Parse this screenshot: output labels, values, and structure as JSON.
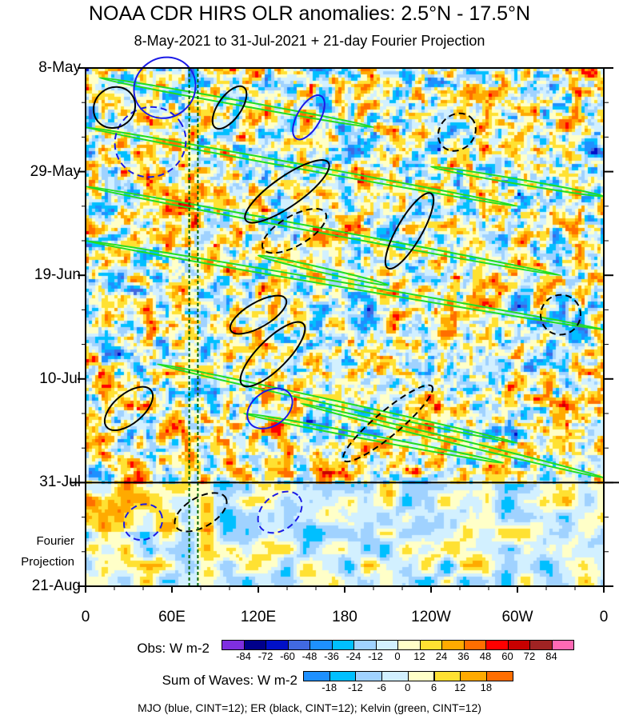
{
  "chart_data": {
    "type": "heatmap",
    "title": "NOAA CDR HIRS OLR anomalies: 2.5°N - 17.5°N",
    "subtitle": "8-May-2021 to 31-Jul-2021 + 21-day Fourier Projection",
    "x_ticks": [
      "0",
      "60E",
      "120E",
      "180",
      "120W",
      "60W",
      "0"
    ],
    "x_tick_lons": [
      0,
      60,
      120,
      180,
      240,
      300,
      360
    ],
    "y_ticks": [
      "8-May",
      "29-May",
      "19-Jun",
      "10-Jul",
      "31-Jul",
      "21-Aug"
    ],
    "y_tick_days": [
      0,
      21,
      42,
      63,
      84,
      105
    ],
    "obs_end_day": 84,
    "projection_label": [
      "Fourier",
      "Projection"
    ],
    "reference_lons": [
      72,
      78
    ],
    "obs_colorbar": {
      "label": "Obs: W m-2",
      "levels": [
        "-84",
        "-72",
        "-60",
        "-48",
        "-36",
        "-24",
        "-12",
        "0",
        "12",
        "24",
        "36",
        "48",
        "60",
        "72",
        "84"
      ],
      "colors": [
        "#7f2fe0",
        "#00008b",
        "#0010c8",
        "#4169e1",
        "#1e90ff",
        "#00bfff",
        "#a0d2ff",
        "#d2f0ff",
        "#ffffc8",
        "#ffe132",
        "#ffaa00",
        "#ff6e00",
        "#ff0000",
        "#c80000",
        "#a02323",
        "#ff69b4"
      ]
    },
    "waves_colorbar": {
      "label": "Sum of Waves: W m-2",
      "levels": [
        "-18",
        "-12",
        "-6",
        "0",
        "6",
        "12",
        "18"
      ],
      "colors": [
        "#1e90ff",
        "#00bfff",
        "#a0d2ff",
        "#d2f0ff",
        "#ffffc8",
        "#ffe132",
        "#ffaa00",
        "#ff6e00"
      ]
    },
    "footer": "MJO (blue, CINT=12); ER (black, CINT=12); Kelvin (green, CINT=12)",
    "contours": [
      {
        "wave": "MJO",
        "lon": 55,
        "day": 4,
        "rlon": 22,
        "rday": 6,
        "angle": -40,
        "dash": false
      },
      {
        "wave": "MJO",
        "lon": 45,
        "day": 15,
        "rlon": 25,
        "rday": 7,
        "angle": -35,
        "dash": true
      },
      {
        "wave": "MJO",
        "lon": 155,
        "day": 10,
        "rlon": 8,
        "rday": 5,
        "angle": -60,
        "dash": false
      },
      {
        "wave": "MJO",
        "lon": 128,
        "day": 69,
        "rlon": 12,
        "rday": 5,
        "angle": -35,
        "dash": false
      },
      {
        "wave": "MJO",
        "lon": 40,
        "day": 92,
        "rlon": 12,
        "rday": 4,
        "angle": -30,
        "dash": true
      },
      {
        "wave": "MJO",
        "lon": 135,
        "day": 90,
        "rlon": 12,
        "rday": 5,
        "angle": -40,
        "dash": true
      },
      {
        "wave": "ER",
        "lon": 100,
        "day": 8,
        "rlon": 8,
        "rday": 5,
        "angle": -55,
        "dash": false
      },
      {
        "wave": "ER",
        "lon": 140,
        "day": 25,
        "rlon": 35,
        "rday": 3,
        "angle": -35,
        "dash": false
      },
      {
        "wave": "ER",
        "lon": 145,
        "day": 33,
        "rlon": 25,
        "rday": 3,
        "angle": -30,
        "dash": true
      },
      {
        "wave": "ER",
        "lon": 225,
        "day": 33,
        "rlon": 30,
        "rday": 2.5,
        "angle": -60,
        "dash": false
      },
      {
        "wave": "ER",
        "lon": 258,
        "day": 13,
        "rlon": 14,
        "rday": 3.5,
        "angle": -45,
        "dash": true
      },
      {
        "wave": "ER",
        "lon": 120,
        "day": 50,
        "rlon": 22,
        "rday": 2.5,
        "angle": -30,
        "dash": false
      },
      {
        "wave": "ER",
        "lon": 130,
        "day": 58,
        "rlon": 30,
        "rday": 3,
        "angle": -45,
        "dash": false
      },
      {
        "wave": "ER",
        "lon": 210,
        "day": 72,
        "rlon": 40,
        "rday": 2.5,
        "angle": -40,
        "dash": true
      },
      {
        "wave": "ER",
        "lon": 330,
        "day": 50,
        "rlon": 14,
        "rday": 4,
        "angle": -45,
        "dash": true
      },
      {
        "wave": "ER",
        "lon": 30,
        "day": 69,
        "rlon": 20,
        "rday": 3,
        "angle": -40,
        "dash": false
      },
      {
        "wave": "ER",
        "lon": 20,
        "day": 8,
        "rlon": 15,
        "rday": 4,
        "angle": -40,
        "dash": false
      },
      {
        "wave": "ER",
        "lon": 80,
        "day": 90,
        "rlon": 20,
        "rday": 3,
        "angle": -30,
        "dash": true
      }
    ],
    "kelvin_bands": [
      {
        "lon0": 10,
        "day0": 2,
        "lon1": 200,
        "day1": 12
      },
      {
        "lon0": 0,
        "day0": 12,
        "lon1": 300,
        "day1": 28
      },
      {
        "lon0": 0,
        "day0": 24,
        "lon1": 330,
        "day1": 42
      },
      {
        "lon0": 0,
        "day0": 35,
        "lon1": 360,
        "day1": 53
      },
      {
        "lon0": 120,
        "day0": 38,
        "lon1": 210,
        "day1": 44
      },
      {
        "lon0": 240,
        "day0": 20,
        "lon1": 360,
        "day1": 26
      },
      {
        "lon0": 50,
        "day0": 60,
        "lon1": 300,
        "day1": 76
      },
      {
        "lon0": 150,
        "day0": 68,
        "lon1": 360,
        "day1": 83
      },
      {
        "lon0": 110,
        "day0": 70,
        "lon1": 290,
        "day1": 80
      }
    ]
  }
}
